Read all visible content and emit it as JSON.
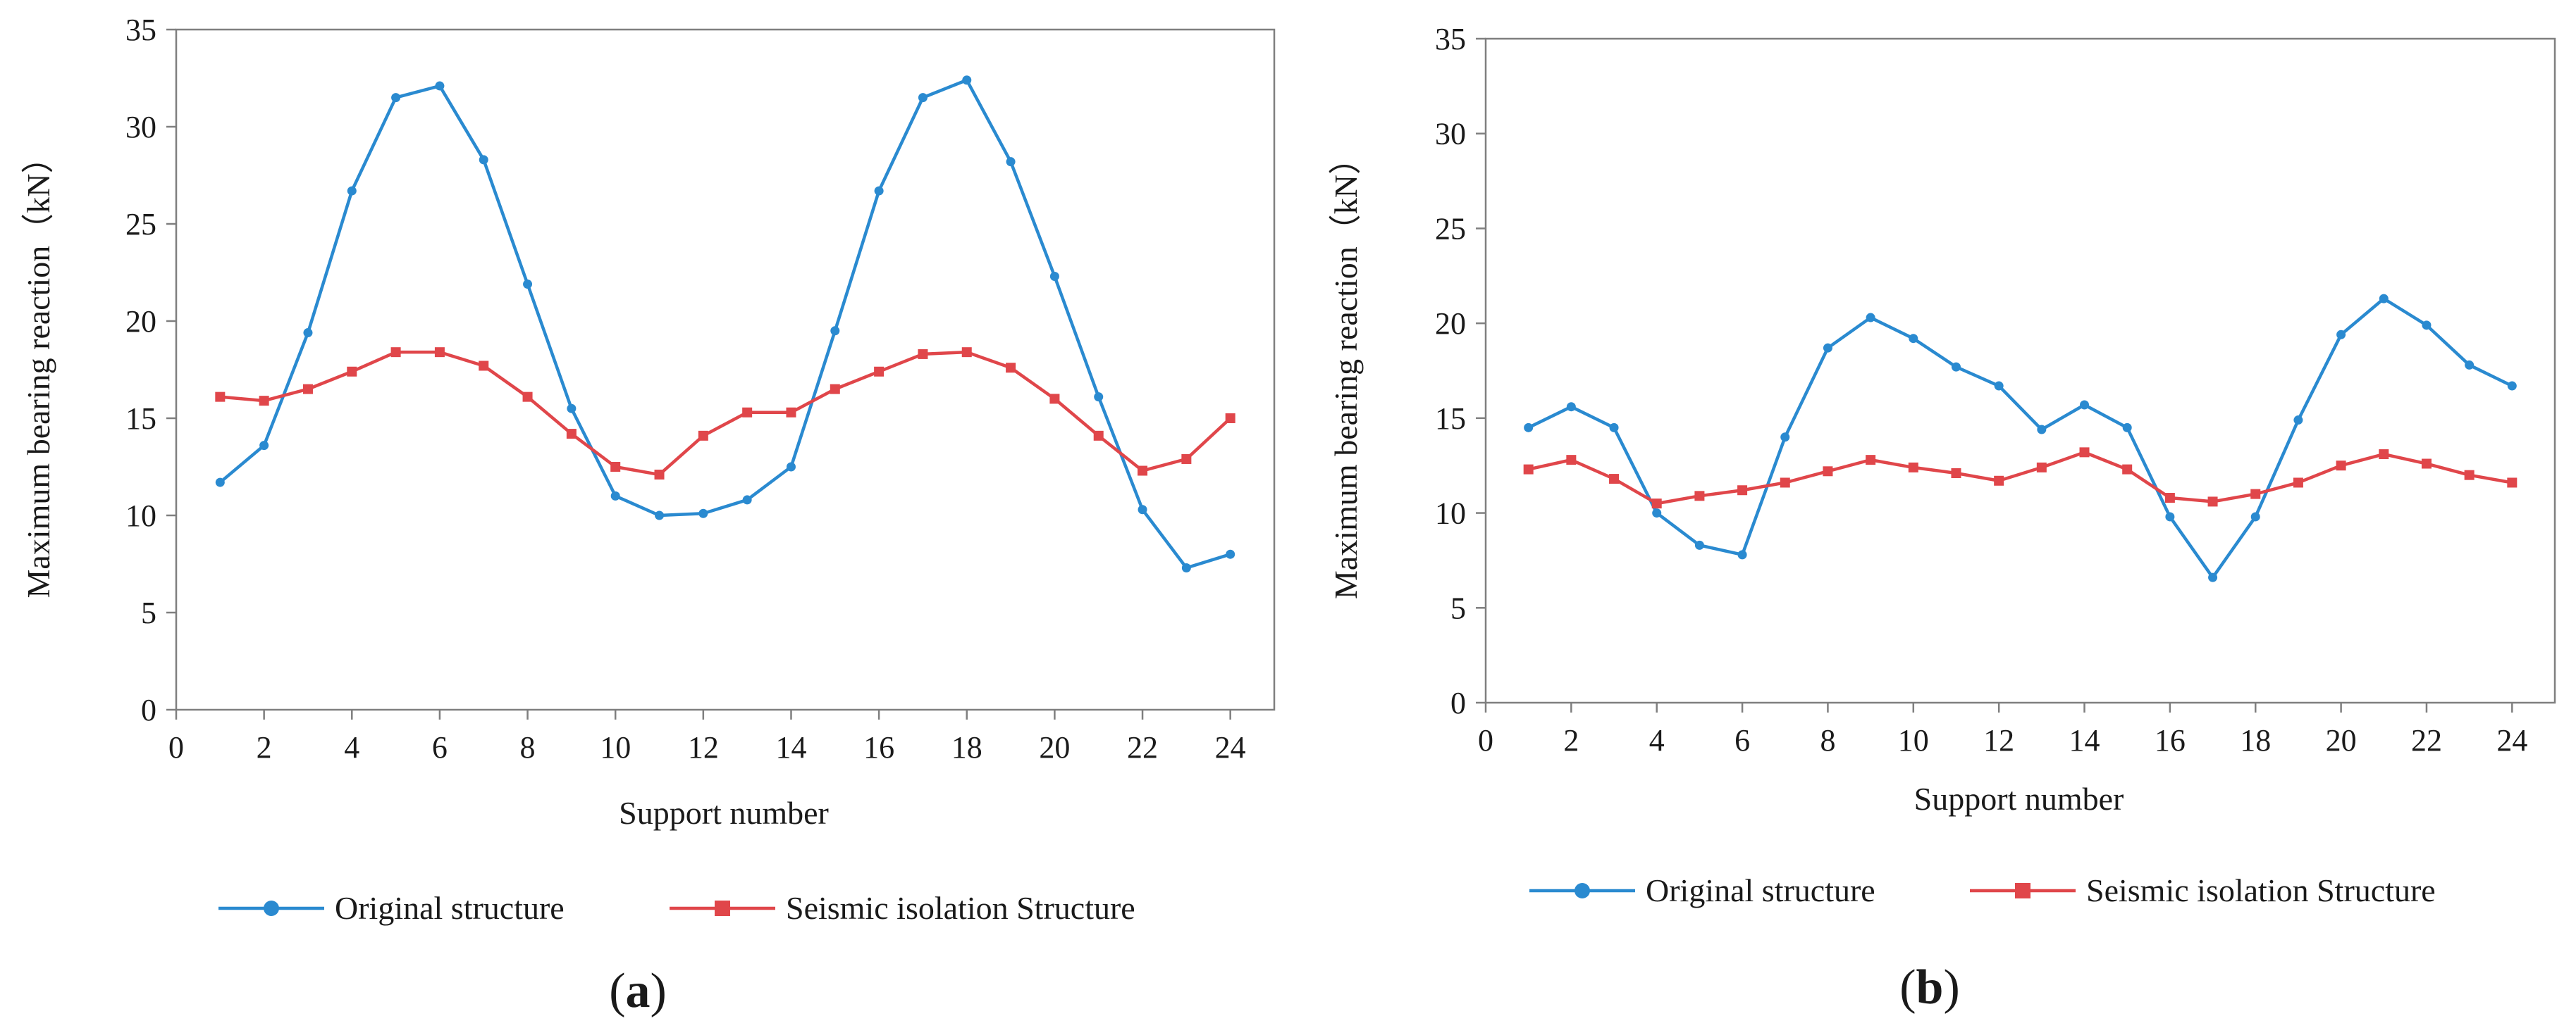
{
  "chart_data": [
    {
      "panel": "a",
      "type": "line",
      "xlabel": "Support number",
      "ylabel": "Maximum bearing reaction（kN）",
      "xlim": [
        0,
        25
      ],
      "ylim": [
        0,
        35
      ],
      "xticks": [
        0,
        2,
        4,
        6,
        8,
        10,
        12,
        14,
        16,
        18,
        20,
        22,
        24
      ],
      "yticks": [
        0,
        5,
        10,
        15,
        20,
        25,
        30,
        35
      ],
      "x": [
        1,
        2,
        3,
        4,
        5,
        6,
        7,
        8,
        9,
        10,
        11,
        12,
        13,
        14,
        15,
        16,
        17,
        18,
        19,
        20,
        21,
        22,
        23,
        24
      ],
      "series": [
        {
          "name": "Original structure",
          "color": "#2a8ad0",
          "marker": "circle",
          "values": [
            11.7,
            13.6,
            19.4,
            26.7,
            31.5,
            32.1,
            28.3,
            21.9,
            15.5,
            11.0,
            10.0,
            10.1,
            10.8,
            12.5,
            19.5,
            26.7,
            31.5,
            32.4,
            28.2,
            22.3,
            16.1,
            10.3,
            7.3,
            8.0
          ]
        },
        {
          "name": "Seismic isolation Structure",
          "color": "#e0464a",
          "marker": "square",
          "values": [
            16.1,
            15.9,
            16.5,
            17.4,
            18.4,
            18.4,
            17.7,
            16.1,
            14.2,
            12.5,
            12.1,
            14.1,
            15.3,
            15.3,
            16.5,
            17.4,
            18.3,
            18.4,
            17.6,
            16.0,
            14.1,
            12.3,
            12.9,
            15.0
          ]
        }
      ]
    },
    {
      "panel": "b",
      "type": "line",
      "xlabel": "Support number",
      "ylabel": "Maximum bearing reaction（kN）",
      "xlim": [
        0,
        25
      ],
      "ylim": [
        0,
        35
      ],
      "xticks": [
        0,
        2,
        4,
        6,
        8,
        10,
        12,
        14,
        16,
        18,
        20,
        22,
        24
      ],
      "yticks": [
        0,
        5,
        10,
        15,
        20,
        25,
        30,
        35
      ],
      "x": [
        1,
        2,
        3,
        4,
        5,
        6,
        7,
        8,
        9,
        10,
        11,
        12,
        13,
        14,
        15,
        16,
        17,
        18,
        19,
        20,
        21,
        22,
        23,
        24
      ],
      "series": [
        {
          "name": "Original structure",
          "color": "#2a8ad0",
          "marker": "circle",
          "values": [
            14.5,
            15.6,
            14.5,
            10.0,
            8.3,
            7.8,
            14.0,
            18.7,
            20.3,
            19.2,
            17.7,
            16.7,
            14.4,
            15.7,
            14.5,
            9.8,
            6.6,
            9.8,
            14.9,
            19.4,
            21.3,
            19.9,
            17.8,
            16.7
          ]
        },
        {
          "name": "Seismic isolation Structure",
          "color": "#e0464a",
          "marker": "square",
          "values": [
            12.3,
            12.8,
            11.8,
            10.5,
            10.9,
            11.2,
            11.6,
            12.2,
            12.8,
            12.4,
            12.1,
            11.7,
            12.4,
            13.2,
            12.3,
            10.8,
            10.6,
            11.0,
            11.6,
            12.5,
            13.1,
            12.6,
            12.0,
            11.6
          ]
        }
      ]
    }
  ]
}
